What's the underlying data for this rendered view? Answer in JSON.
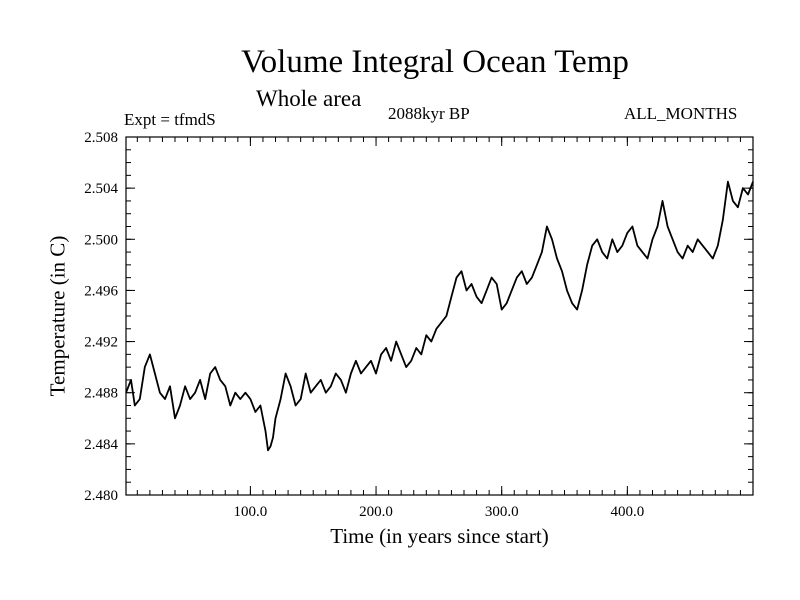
{
  "chart_data": {
    "type": "line",
    "title": "Volume Integral Ocean Temp",
    "subtitle": "Whole area",
    "left_label": "Expt = tfmdS",
    "center_label": "2088kyr BP",
    "right_label": "ALL_MONTHS",
    "xlabel": "Time (in years since start)",
    "ylabel": "Temperature (in C)",
    "xlim": [
      1,
      500
    ],
    "ylim": [
      2.48,
      2.508
    ],
    "xticks": [
      100,
      200,
      300,
      400
    ],
    "xtick_labels": [
      "100.0",
      "200.0",
      "300.0",
      "400.0"
    ],
    "yticks": [
      2.48,
      2.484,
      2.488,
      2.492,
      2.496,
      2.5,
      2.504,
      2.508
    ],
    "ytick_labels": [
      "2.480",
      "2.484",
      "2.488",
      "2.492",
      "2.496",
      "2.500",
      "2.504",
      "2.508"
    ],
    "grid": false,
    "series": [
      {
        "name": "Volume Integral Ocean Temp",
        "color": "#000000",
        "x": [
          1,
          5,
          8,
          12,
          16,
          20,
          24,
          28,
          32,
          36,
          40,
          44,
          48,
          52,
          56,
          60,
          64,
          68,
          72,
          76,
          80,
          84,
          88,
          92,
          96,
          100,
          104,
          108,
          112,
          114,
          116,
          118,
          120,
          124,
          128,
          132,
          136,
          140,
          144,
          148,
          152,
          156,
          160,
          164,
          168,
          172,
          176,
          180,
          184,
          188,
          192,
          196,
          200,
          204,
          208,
          212,
          216,
          220,
          224,
          228,
          232,
          236,
          240,
          244,
          248,
          252,
          256,
          260,
          264,
          268,
          272,
          276,
          280,
          284,
          288,
          292,
          296,
          300,
          304,
          308,
          312,
          316,
          320,
          324,
          328,
          332,
          336,
          340,
          344,
          348,
          352,
          356,
          360,
          364,
          368,
          372,
          376,
          380,
          384,
          388,
          392,
          396,
          400,
          404,
          408,
          412,
          416,
          420,
          424,
          428,
          432,
          436,
          440,
          444,
          448,
          452,
          456,
          460,
          464,
          468,
          472,
          476,
          480,
          484,
          488,
          492,
          496,
          500
        ],
        "values": [
          2.488,
          2.489,
          2.487,
          2.4875,
          2.49,
          2.491,
          2.4895,
          2.488,
          2.4875,
          2.4885,
          2.486,
          2.487,
          2.4885,
          2.4875,
          2.488,
          2.489,
          2.4875,
          2.4895,
          2.49,
          2.489,
          2.4885,
          2.487,
          2.488,
          2.4875,
          2.488,
          2.4875,
          2.4865,
          2.487,
          2.485,
          2.4835,
          2.4838,
          2.4845,
          2.486,
          2.4875,
          2.4895,
          2.4885,
          2.487,
          2.4875,
          2.4895,
          2.488,
          2.4885,
          2.489,
          2.488,
          2.4885,
          2.4895,
          2.489,
          2.488,
          2.4895,
          2.4905,
          2.4895,
          2.49,
          2.4905,
          2.4895,
          2.491,
          2.4915,
          2.4905,
          2.492,
          2.491,
          2.49,
          2.4905,
          2.4915,
          2.491,
          2.4925,
          2.492,
          2.493,
          2.4935,
          2.494,
          2.4955,
          2.497,
          2.4975,
          2.496,
          2.4965,
          2.4955,
          2.495,
          2.496,
          2.497,
          2.4965,
          2.4945,
          2.495,
          2.496,
          2.497,
          2.4975,
          2.4965,
          2.497,
          2.498,
          2.499,
          2.501,
          2.5,
          2.4985,
          2.4975,
          2.496,
          2.495,
          2.4945,
          2.496,
          2.498,
          2.4995,
          2.5,
          2.499,
          2.4985,
          2.5,
          2.499,
          2.4995,
          2.5005,
          2.501,
          2.4995,
          2.499,
          2.4985,
          2.5,
          2.501,
          2.503,
          2.501,
          2.5,
          2.499,
          2.4985,
          2.4995,
          2.499,
          2.5,
          2.4995,
          2.499,
          2.4985,
          2.4995,
          2.5015,
          2.5045,
          2.503,
          2.5025,
          2.504,
          2.5035,
          2.5045
        ]
      }
    ]
  }
}
